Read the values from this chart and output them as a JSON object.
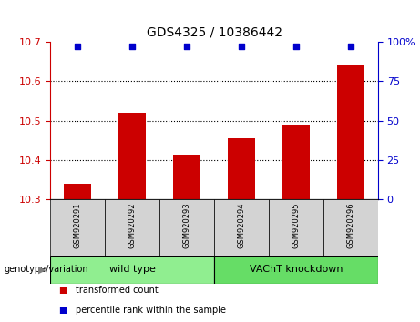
{
  "title": "GDS4325 / 10386442",
  "samples": [
    "GSM920291",
    "GSM920292",
    "GSM920293",
    "GSM920294",
    "GSM920295",
    "GSM920296"
  ],
  "bar_values": [
    10.34,
    10.52,
    10.415,
    10.455,
    10.49,
    10.64
  ],
  "bar_baseline": 10.3,
  "bar_color": "#cc0000",
  "percentile_values": [
    97,
    97,
    97,
    97,
    97,
    97
  ],
  "percentile_color": "#0000cc",
  "ylim_left": [
    10.3,
    10.7
  ],
  "ylim_right": [
    0,
    100
  ],
  "yticks_left": [
    10.3,
    10.4,
    10.5,
    10.6,
    10.7
  ],
  "yticks_right": [
    0,
    25,
    50,
    75,
    100
  ],
  "ytick_labels_right": [
    "0",
    "25",
    "50",
    "75",
    "100%"
  ],
  "grid_values": [
    10.4,
    10.5,
    10.6
  ],
  "groups": [
    {
      "label": "wild type",
      "start": 0,
      "end": 3,
      "color": "#90ee90"
    },
    {
      "label": "VAChT knockdown",
      "start": 3,
      "end": 6,
      "color": "#66dd66"
    }
  ],
  "genotype_label": "genotype/variation",
  "legend_items": [
    {
      "color": "#cc0000",
      "label": "transformed count"
    },
    {
      "color": "#0000cc",
      "label": "percentile rank within the sample"
    }
  ],
  "left_axis_color": "#cc0000",
  "right_axis_color": "#0000cc",
  "background_color": "#ffffff",
  "sample_box_color": "#d3d3d3",
  "bar_width": 0.5
}
